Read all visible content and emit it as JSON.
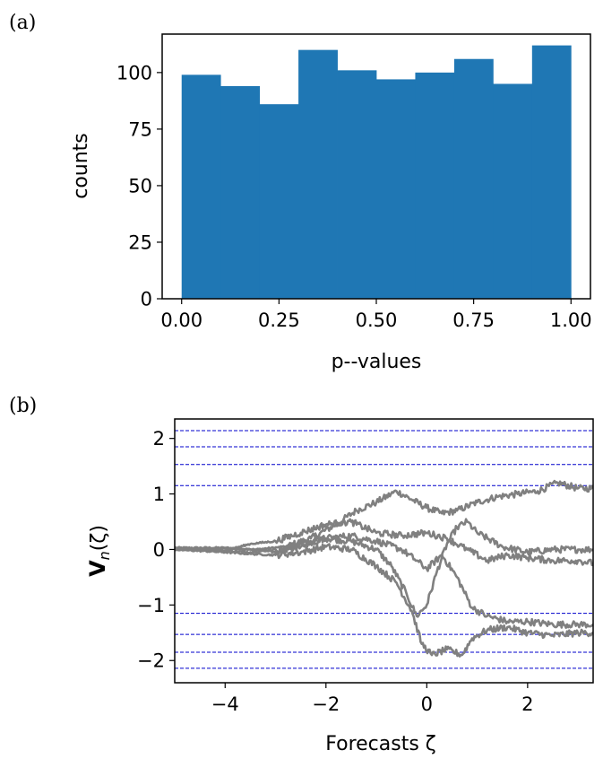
{
  "chart_data": [
    {
      "panel_label": "(a)",
      "type": "bar",
      "bin_edges": [
        0.0,
        0.1,
        0.2,
        0.3,
        0.4,
        0.5,
        0.6,
        0.7,
        0.8,
        0.9,
        1.0
      ],
      "values": [
        99,
        94,
        86,
        110,
        101,
        97,
        100,
        106,
        95,
        112
      ],
      "xlabel": "p--values",
      "ylabel": "counts",
      "xlim": [
        -0.05,
        1.05
      ],
      "ylim": [
        0,
        117
      ],
      "xticks": [
        0.0,
        0.25,
        0.5,
        0.75,
        1.0
      ],
      "xtick_labels": [
        "0.00",
        "0.25",
        "0.50",
        "0.75",
        "1.00"
      ],
      "yticks": [
        0,
        25,
        50,
        75,
        100
      ],
      "ytick_labels": [
        "0",
        "25",
        "50",
        "75",
        "100"
      ],
      "bar_color": "#1f77b4",
      "grid": false
    },
    {
      "panel_label": "(b)",
      "type": "line",
      "xlabel": "Forecasts ζ",
      "ylabel_main": "V",
      "ylabel_sub": "n",
      "ylabel_tail": "(ζ)",
      "xlim": [
        -5,
        3.3
      ],
      "ylim": [
        -2.4,
        2.35
      ],
      "xticks": [
        -4,
        -2,
        0,
        2
      ],
      "xtick_labels": [
        "−4",
        "−2",
        "0",
        "2"
      ],
      "yticks": [
        -2,
        -1,
        0,
        1,
        2
      ],
      "ytick_labels": [
        "−2",
        "−1",
        "0",
        "1",
        "2"
      ],
      "line_color": "#808080",
      "reference_lines": [
        2.14,
        1.85,
        1.53,
        1.15,
        -1.15,
        -1.53,
        -1.85,
        -2.14
      ],
      "reference_line_color": "#0000cc",
      "grid": false,
      "series": [
        {
          "x": [
            -5,
            -4,
            -3.4,
            -2.8,
            -2.3,
            -1.8,
            -1.4,
            -1.0,
            -0.6,
            -0.3,
            0.0,
            0.3,
            0.6,
            1.0,
            1.4,
            1.8,
            2.2,
            2.6,
            3.0,
            3.3
          ],
          "values": [
            0.03,
            0.03,
            0.0,
            0.05,
            0.2,
            0.45,
            0.7,
            0.85,
            1.05,
            0.9,
            0.75,
            0.65,
            0.7,
            0.85,
            0.95,
            1.0,
            1.05,
            1.2,
            1.1,
            1.1
          ]
        },
        {
          "x": [
            -5,
            -4,
            -3.5,
            -3.0,
            -2.5,
            -2.0,
            -1.5,
            -1.0,
            -0.7,
            -0.4,
            -0.2,
            0.0,
            0.2,
            0.4,
            0.6,
            0.8,
            1.0,
            1.5,
            2.0,
            2.5,
            3.0,
            3.3
          ],
          "values": [
            0.02,
            0.02,
            0.0,
            -0.05,
            0.1,
            0.2,
            0.15,
            0.0,
            -0.3,
            -0.8,
            -1.2,
            -1.0,
            -0.4,
            0.1,
            0.4,
            0.5,
            0.3,
            0.05,
            -0.05,
            0.0,
            0.0,
            0.0
          ]
        },
        {
          "x": [
            -5,
            -4,
            -3.5,
            -3.0,
            -2.5,
            -2.0,
            -1.5,
            -1.0,
            -0.5,
            -0.2,
            0.0,
            0.3,
            0.6,
            0.9,
            1.2,
            1.6,
            2.0,
            2.5,
            3.0,
            3.3
          ],
          "values": [
            0.0,
            -0.02,
            -0.05,
            0.0,
            0.05,
            0.2,
            0.25,
            0.15,
            0.0,
            -0.2,
            -0.35,
            -0.1,
            -0.5,
            -1.05,
            -1.2,
            -1.3,
            -1.3,
            -1.35,
            -1.35,
            -1.35
          ]
        },
        {
          "x": [
            -5,
            -4,
            -3.5,
            -3.0,
            -2.5,
            -2.0,
            -1.5,
            -1.0,
            -0.6,
            -0.3,
            -0.1,
            0.1,
            0.4,
            0.7,
            0.9,
            1.2,
            1.6,
            2.0,
            2.5,
            3.0,
            3.3
          ],
          "values": [
            0.0,
            -0.05,
            -0.08,
            -0.1,
            -0.05,
            0.05,
            0.0,
            -0.3,
            -0.6,
            -1.1,
            -1.7,
            -1.9,
            -1.8,
            -1.9,
            -1.6,
            -1.45,
            -1.4,
            -1.5,
            -1.55,
            -1.5,
            -1.5
          ]
        },
        {
          "x": [
            -5,
            -4,
            -3.5,
            -3.0,
            -2.5,
            -2.0,
            -1.5,
            -1.0,
            -0.5,
            0.0,
            0.4,
            0.8,
            1.2,
            1.6,
            2.0,
            2.5,
            3.0,
            3.3
          ],
          "values": [
            0.0,
            -0.02,
            0.1,
            0.15,
            0.3,
            0.45,
            0.5,
            0.3,
            0.25,
            0.3,
            0.2,
            0.0,
            -0.2,
            -0.1,
            -0.15,
            -0.2,
            -0.2,
            -0.25
          ]
        }
      ]
    }
  ]
}
